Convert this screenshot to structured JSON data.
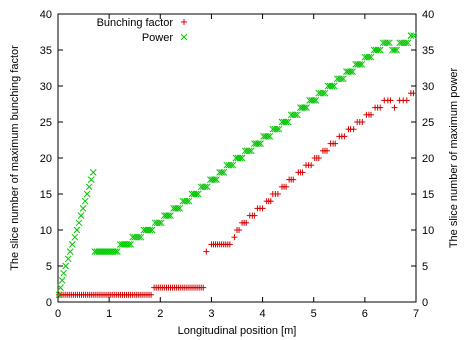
{
  "chart_data": {
    "type": "scatter",
    "title": "",
    "xlabel": "Longitudinal position [m]",
    "ylabel_left": "The slice number of maximum bunching factor",
    "ylabel_right": "The slice number of maximum power",
    "xlim": [
      0,
      7
    ],
    "ylim_left": [
      0,
      40
    ],
    "ylim_right": [
      0,
      40
    ],
    "x_ticks": [
      "0",
      "1",
      "2",
      "3",
      "4",
      "5",
      "6",
      "7"
    ],
    "y_ticks_left": [
      "0",
      "5",
      "10",
      "15",
      "20",
      "25",
      "30",
      "35",
      "40"
    ],
    "y_ticks_right": [
      "0",
      "5",
      "10",
      "15",
      "20",
      "25",
      "30",
      "35",
      "40"
    ],
    "grid": false,
    "legend_position": "top-left",
    "series": [
      {
        "name": "Bunching factor",
        "marker": "plus",
        "color": "#d40000",
        "segments": [
          {
            "x_start": 0.02,
            "x_end": 1.85,
            "step": 0.04,
            "y": 1
          },
          {
            "x_start": 1.88,
            "x_end": 2.85,
            "step": 0.04,
            "y": 2
          }
        ],
        "points": [
          [
            2.9,
            7
          ],
          [
            3.0,
            8
          ],
          [
            3.04,
            8
          ],
          [
            3.08,
            8
          ],
          [
            3.12,
            8
          ],
          [
            3.16,
            8
          ],
          [
            3.2,
            8
          ],
          [
            3.24,
            8
          ],
          [
            3.28,
            8
          ],
          [
            3.32,
            8
          ],
          [
            3.36,
            8
          ],
          [
            3.45,
            9
          ],
          [
            3.5,
            10
          ],
          [
            3.54,
            10
          ],
          [
            3.6,
            11
          ],
          [
            3.64,
            11
          ],
          [
            3.68,
            11
          ],
          [
            3.75,
            12
          ],
          [
            3.8,
            12
          ],
          [
            3.84,
            12
          ],
          [
            3.9,
            13
          ],
          [
            3.95,
            13
          ],
          [
            4.0,
            13
          ],
          [
            4.08,
            14
          ],
          [
            4.12,
            14
          ],
          [
            4.16,
            14
          ],
          [
            4.2,
            15
          ],
          [
            4.25,
            15
          ],
          [
            4.3,
            15
          ],
          [
            4.38,
            16
          ],
          [
            4.42,
            16
          ],
          [
            4.46,
            16
          ],
          [
            4.52,
            17
          ],
          [
            4.56,
            17
          ],
          [
            4.6,
            17
          ],
          [
            4.7,
            18
          ],
          [
            4.74,
            18
          ],
          [
            4.78,
            18
          ],
          [
            4.85,
            19
          ],
          [
            4.9,
            19
          ],
          [
            4.95,
            19
          ],
          [
            5.02,
            20
          ],
          [
            5.06,
            20
          ],
          [
            5.1,
            20
          ],
          [
            5.18,
            21
          ],
          [
            5.22,
            21
          ],
          [
            5.26,
            21
          ],
          [
            5.33,
            22
          ],
          [
            5.38,
            22
          ],
          [
            5.42,
            22
          ],
          [
            5.5,
            23
          ],
          [
            5.55,
            23
          ],
          [
            5.6,
            23
          ],
          [
            5.68,
            24
          ],
          [
            5.72,
            24
          ],
          [
            5.78,
            24
          ],
          [
            5.85,
            25
          ],
          [
            5.9,
            25
          ],
          [
            5.95,
            25
          ],
          [
            6.03,
            26
          ],
          [
            6.08,
            26
          ],
          [
            6.12,
            26
          ],
          [
            6.2,
            27
          ],
          [
            6.25,
            27
          ],
          [
            6.3,
            27
          ],
          [
            6.38,
            28
          ],
          [
            6.45,
            28
          ],
          [
            6.5,
            28
          ],
          [
            6.58,
            27
          ],
          [
            6.68,
            28
          ],
          [
            6.75,
            28
          ],
          [
            6.82,
            28
          ],
          [
            6.9,
            29
          ],
          [
            6.95,
            29
          ]
        ]
      },
      {
        "name": "Power",
        "marker": "x",
        "color": "#00c800",
        "points": [
          [
            0.02,
            1
          ],
          [
            0.05,
            2
          ],
          [
            0.08,
            3
          ],
          [
            0.11,
            4
          ],
          [
            0.15,
            5
          ],
          [
            0.2,
            6
          ],
          [
            0.24,
            7
          ],
          [
            0.28,
            8
          ],
          [
            0.33,
            9
          ],
          [
            0.37,
            10
          ],
          [
            0.41,
            11
          ],
          [
            0.45,
            12
          ],
          [
            0.49,
            13
          ],
          [
            0.53,
            14
          ],
          [
            0.57,
            15
          ],
          [
            0.61,
            16
          ],
          [
            0.65,
            17
          ],
          [
            0.69,
            18
          ],
          [
            0.72,
            7
          ],
          [
            0.76,
            7
          ],
          [
            0.8,
            7
          ],
          [
            0.84,
            7
          ],
          [
            0.88,
            7
          ],
          [
            0.92,
            7
          ],
          [
            0.96,
            7
          ],
          [
            1.0,
            7
          ],
          [
            1.04,
            7
          ],
          [
            1.08,
            7
          ],
          [
            1.12,
            7
          ],
          [
            1.16,
            7
          ],
          [
            1.22,
            8
          ],
          [
            1.26,
            8
          ],
          [
            1.3,
            8
          ],
          [
            1.34,
            8
          ],
          [
            1.38,
            8
          ],
          [
            1.42,
            8
          ],
          [
            1.46,
            9
          ],
          [
            1.5,
            9
          ],
          [
            1.54,
            9
          ],
          [
            1.58,
            9
          ],
          [
            1.62,
            9
          ],
          [
            1.68,
            10
          ],
          [
            1.72,
            10
          ],
          [
            1.76,
            10
          ],
          [
            1.8,
            10
          ],
          [
            1.84,
            10
          ],
          [
            1.9,
            11
          ],
          [
            1.94,
            11
          ],
          [
            1.98,
            11
          ],
          [
            2.02,
            11
          ],
          [
            2.08,
            12
          ],
          [
            2.12,
            12
          ],
          [
            2.16,
            12
          ],
          [
            2.2,
            12
          ],
          [
            2.26,
            13
          ],
          [
            2.3,
            13
          ],
          [
            2.34,
            13
          ],
          [
            2.38,
            13
          ],
          [
            2.44,
            14
          ],
          [
            2.48,
            14
          ],
          [
            2.52,
            14
          ],
          [
            2.56,
            14
          ],
          [
            2.62,
            15
          ],
          [
            2.66,
            15
          ],
          [
            2.7,
            15
          ],
          [
            2.74,
            15
          ],
          [
            2.8,
            16
          ],
          [
            2.84,
            16
          ],
          [
            2.88,
            16
          ],
          [
            2.92,
            16
          ],
          [
            2.98,
            17
          ],
          [
            3.02,
            17
          ],
          [
            3.06,
            17
          ],
          [
            3.1,
            17
          ],
          [
            3.16,
            18
          ],
          [
            3.2,
            18
          ],
          [
            3.24,
            18
          ],
          [
            3.3,
            19
          ],
          [
            3.34,
            19
          ],
          [
            3.38,
            19
          ],
          [
            3.42,
            19
          ],
          [
            3.48,
            20
          ],
          [
            3.52,
            20
          ],
          [
            3.56,
            20
          ],
          [
            3.6,
            20
          ],
          [
            3.66,
            21
          ],
          [
            3.7,
            21
          ],
          [
            3.74,
            21
          ],
          [
            3.78,
            21
          ],
          [
            3.84,
            22
          ],
          [
            3.88,
            22
          ],
          [
            3.92,
            22
          ],
          [
            3.96,
            22
          ],
          [
            4.02,
            23
          ],
          [
            4.06,
            23
          ],
          [
            4.1,
            23
          ],
          [
            4.14,
            23
          ],
          [
            4.2,
            24
          ],
          [
            4.24,
            24
          ],
          [
            4.28,
            24
          ],
          [
            4.32,
            24
          ],
          [
            4.38,
            25
          ],
          [
            4.42,
            25
          ],
          [
            4.46,
            25
          ],
          [
            4.5,
            25
          ],
          [
            4.56,
            26
          ],
          [
            4.6,
            26
          ],
          [
            4.64,
            26
          ],
          [
            4.68,
            26
          ],
          [
            4.74,
            27
          ],
          [
            4.78,
            27
          ],
          [
            4.82,
            27
          ],
          [
            4.86,
            27
          ],
          [
            4.92,
            28
          ],
          [
            4.96,
            28
          ],
          [
            5.0,
            28
          ],
          [
            5.04,
            28
          ],
          [
            5.1,
            29
          ],
          [
            5.14,
            29
          ],
          [
            5.18,
            29
          ],
          [
            5.22,
            29
          ],
          [
            5.28,
            30
          ],
          [
            5.32,
            30
          ],
          [
            5.36,
            30
          ],
          [
            5.4,
            30
          ],
          [
            5.46,
            31
          ],
          [
            5.5,
            31
          ],
          [
            5.54,
            31
          ],
          [
            5.58,
            31
          ],
          [
            5.64,
            32
          ],
          [
            5.68,
            32
          ],
          [
            5.72,
            32
          ],
          [
            5.76,
            32
          ],
          [
            5.82,
            33
          ],
          [
            5.86,
            33
          ],
          [
            5.9,
            33
          ],
          [
            5.94,
            33
          ],
          [
            6.0,
            34
          ],
          [
            6.04,
            34
          ],
          [
            6.08,
            34
          ],
          [
            6.12,
            34
          ],
          [
            6.18,
            35
          ],
          [
            6.22,
            35
          ],
          [
            6.26,
            35
          ],
          [
            6.3,
            35
          ],
          [
            6.36,
            36
          ],
          [
            6.4,
            36
          ],
          [
            6.44,
            36
          ],
          [
            6.48,
            36
          ],
          [
            6.54,
            35
          ],
          [
            6.58,
            35
          ],
          [
            6.62,
            35
          ],
          [
            6.68,
            36
          ],
          [
            6.72,
            36
          ],
          [
            6.76,
            36
          ],
          [
            6.8,
            36
          ],
          [
            6.84,
            36
          ],
          [
            6.9,
            37
          ],
          [
            6.95,
            37
          ]
        ]
      }
    ]
  }
}
